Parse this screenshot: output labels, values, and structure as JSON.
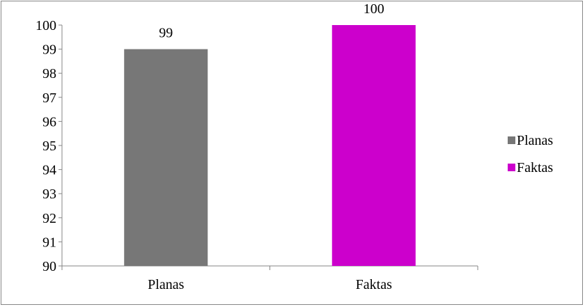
{
  "chart_data": {
    "type": "bar",
    "categories": [
      "Planas",
      "Faktas"
    ],
    "values": [
      99,
      100
    ],
    "data_labels": [
      "99",
      "100"
    ],
    "colors": [
      "#777777",
      "#cc00cc"
    ],
    "ylim": [
      90,
      100
    ],
    "yticks": [
      90,
      91,
      92,
      93,
      94,
      95,
      96,
      97,
      98,
      99,
      100
    ],
    "ytick_labels": [
      "90",
      "91",
      "92",
      "93",
      "94",
      "95",
      "96",
      "97",
      "98",
      "99",
      "100"
    ],
    "grid": false,
    "legend": {
      "position": "right",
      "entries": [
        {
          "label": "Planas",
          "color": "#777777"
        },
        {
          "label": "Faktas",
          "color": "#cc00cc"
        }
      ]
    }
  }
}
